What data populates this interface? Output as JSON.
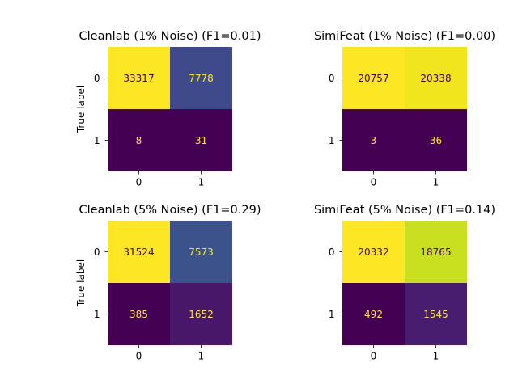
{
  "figure": {
    "background": "#ffffff"
  },
  "chart_data": [
    {
      "type": "heatmap",
      "title": "Cleanlab (1% Noise) (F1=0.01)",
      "ylabel": "True label",
      "xlabel": "",
      "x_ticks": [
        "0",
        "1"
      ],
      "y_ticks": [
        "0",
        "1"
      ],
      "matrix": [
        [
          33317,
          7778
        ],
        [
          8,
          31
        ]
      ],
      "value_labels": [
        [
          "33317",
          "7778"
        ],
        [
          "8",
          "31"
        ]
      ],
      "cell_colors": [
        [
          "#fde725",
          "#3e4a89"
        ],
        [
          "#440154",
          "#440154"
        ]
      ],
      "text_colors": [
        [
          "#440154",
          "#fde725"
        ],
        [
          "#fde725",
          "#fde725"
        ]
      ]
    },
    {
      "type": "heatmap",
      "title": "SimiFeat (1% Noise) (F1=0.00)",
      "ylabel": "",
      "xlabel": "",
      "x_ticks": [
        "0",
        "1"
      ],
      "y_ticks": [
        "0",
        "1"
      ],
      "matrix": [
        [
          20757,
          20338
        ],
        [
          3,
          36
        ]
      ],
      "value_labels": [
        [
          "20757",
          "20338"
        ],
        [
          "3",
          "36"
        ]
      ],
      "cell_colors": [
        [
          "#fde725",
          "#f1e51d"
        ],
        [
          "#440154",
          "#440154"
        ]
      ],
      "text_colors": [
        [
          "#440154",
          "#440154"
        ],
        [
          "#fde725",
          "#fde725"
        ]
      ]
    },
    {
      "type": "heatmap",
      "title": "Cleanlab (5% Noise) (F1=0.29)",
      "ylabel": "True label",
      "xlabel": "",
      "x_ticks": [
        "0",
        "1"
      ],
      "y_ticks": [
        "0",
        "1"
      ],
      "matrix": [
        [
          31524,
          7573
        ],
        [
          385,
          1652
        ]
      ],
      "value_labels": [
        [
          "31524",
          "7573"
        ],
        [
          "385",
          "1652"
        ]
      ],
      "cell_colors": [
        [
          "#fde725",
          "#3b528b"
        ],
        [
          "#440154",
          "#481769"
        ]
      ],
      "text_colors": [
        [
          "#440154",
          "#fde725"
        ],
        [
          "#fde725",
          "#fde725"
        ]
      ]
    },
    {
      "type": "heatmap",
      "title": "SimiFeat (5% Noise) (F1=0.14)",
      "ylabel": "",
      "xlabel": "",
      "x_ticks": [
        "0",
        "1"
      ],
      "y_ticks": [
        "0",
        "1"
      ],
      "matrix": [
        [
          20332,
          18765
        ],
        [
          492,
          1545
        ]
      ],
      "value_labels": [
        [
          "20332",
          "18765"
        ],
        [
          "492",
          "1545"
        ]
      ],
      "cell_colors": [
        [
          "#fde725",
          "#c8e020"
        ],
        [
          "#440154",
          "#481c6e"
        ]
      ],
      "text_colors": [
        [
          "#440154",
          "#440154"
        ],
        [
          "#fde725",
          "#fde725"
        ]
      ]
    }
  ]
}
